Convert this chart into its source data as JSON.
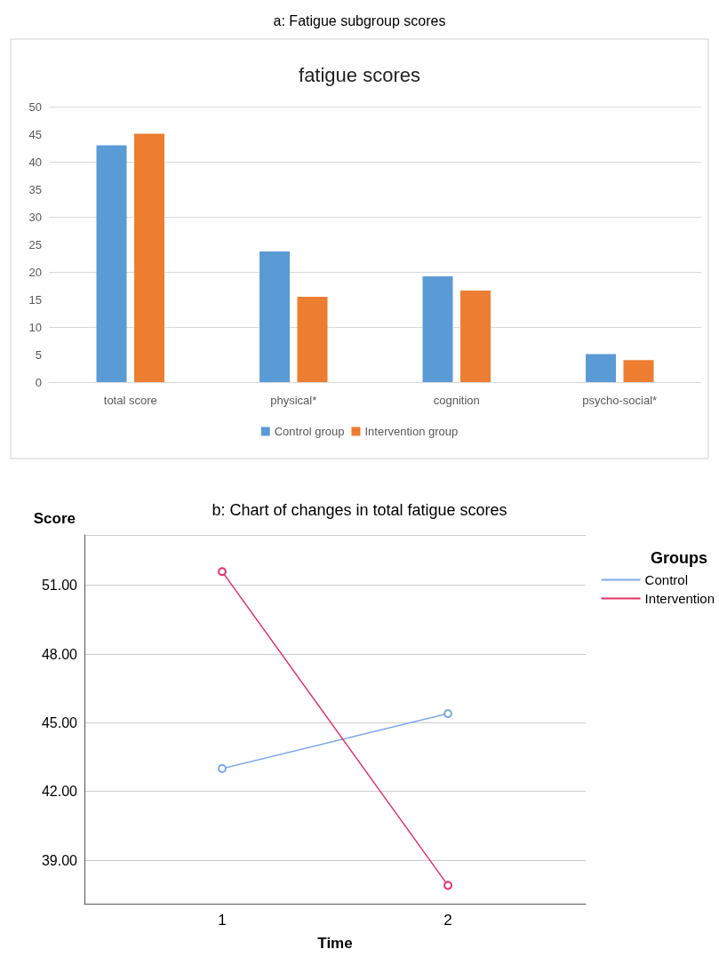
{
  "chart_data": [
    {
      "type": "bar",
      "title": "a: Fatigue subgroup scores",
      "subtitle": "fatigue scores",
      "categories": [
        "total score",
        "physical*",
        "cognition",
        "psycho-social*"
      ],
      "series": [
        {
          "name": "Control group",
          "color": "#5b9bd5",
          "values": [
            43,
            23.7,
            19.2,
            5.1
          ]
        },
        {
          "name": "Intervention group",
          "color": "#ed7d31",
          "values": [
            45.1,
            15.5,
            16.6,
            4.0
          ]
        }
      ],
      "ylim": [
        0,
        50
      ],
      "yticks": [
        0,
        5,
        10,
        15,
        20,
        25,
        30,
        35,
        40,
        45,
        50
      ],
      "grid": "y",
      "legend": "bottom"
    },
    {
      "type": "line",
      "title": "b: Chart of changes in total fatigue scores",
      "xlabel": "Time",
      "ylabel": "Score",
      "legend_title": "Groups",
      "x": [
        1,
        2
      ],
      "series": [
        {
          "name": "Control",
          "color": "#7fa8e8",
          "values": [
            43.0,
            45.4
          ]
        },
        {
          "name": "Intervention",
          "color": "#e0356a",
          "values": [
            51.6,
            37.9
          ]
        }
      ],
      "xlim": [
        0.39,
        2.61
      ],
      "xticks": [
        1,
        2
      ],
      "ylim": [
        37.1,
        53.2
      ],
      "yticks": [
        {
          "value": 39,
          "label": "39.00"
        },
        {
          "value": 42,
          "label": "42.00"
        },
        {
          "value": 45,
          "label": "45.00"
        },
        {
          "value": 48,
          "label": "48.00"
        },
        {
          "value": 51,
          "label": "51.00"
        }
      ],
      "grid": "y",
      "legend": "top right",
      "marker": "circle",
      "line_style": "solid"
    }
  ]
}
